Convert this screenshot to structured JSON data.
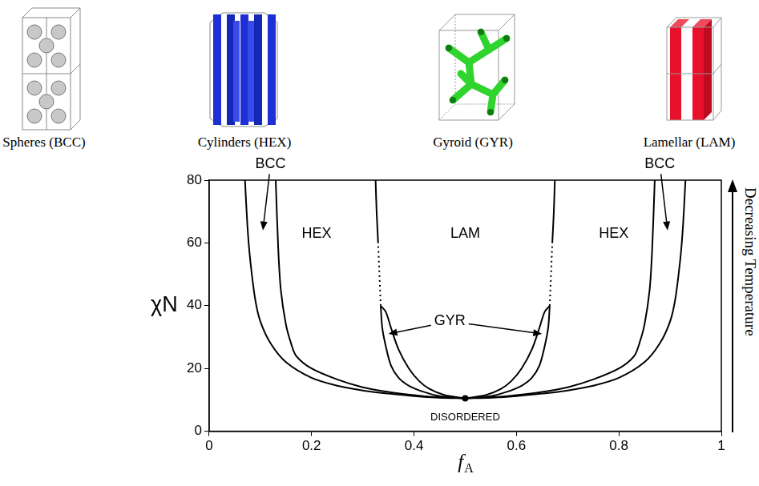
{
  "chart_data": {
    "type": "line",
    "x_label": "fA",
    "y_label": "χN",
    "side_label": "Decreasing Temperature",
    "xlim": [
      0,
      1
    ],
    "xticks": [
      0,
      0.2,
      0.4,
      0.6,
      0.8,
      1
    ],
    "ylim": [
      0,
      80
    ],
    "yticks": [
      0,
      20,
      40,
      60,
      80
    ],
    "grid": false,
    "series": [
      {
        "color": "#000000",
        "line_style": "solid",
        "x": [
          0.5,
          0.45,
          0.4,
          0.35,
          0.3,
          0.25,
          0.2,
          0.15,
          0.12,
          0.1,
          0.09,
          0.08,
          0.075,
          0.07
        ],
        "values": [
          10.5,
          10.7,
          11.2,
          12,
          13,
          14.5,
          17,
          22,
          28,
          35,
          42,
          55,
          65,
          80
        ]
      },
      {
        "color": "#000000",
        "line_style": "solid",
        "x": [
          0.5,
          0.45,
          0.4,
          0.35,
          0.3,
          0.25,
          0.2,
          0.17,
          0.16,
          0.15,
          0.14,
          0.135,
          0.13
        ],
        "values": [
          10.5,
          10.8,
          11.5,
          12.5,
          14,
          16.5,
          20,
          24,
          28,
          34,
          45,
          58,
          80
        ]
      },
      {
        "color": "#000000",
        "line_style": "solid",
        "x": [
          0.5,
          0.45,
          0.42,
          0.39,
          0.37,
          0.355,
          0.345,
          0.338,
          0.335
        ],
        "values": [
          10.5,
          11.2,
          12.5,
          14.5,
          17,
          21,
          27,
          33,
          40
        ]
      },
      {
        "color": "#000000",
        "line_style": "solid",
        "x": [
          0.5,
          0.46,
          0.43,
          0.41,
          0.39,
          0.37,
          0.355,
          0.345,
          0.335
        ],
        "values": [
          10.5,
          11.5,
          13.5,
          16,
          20,
          26,
          33,
          38,
          40
        ]
      },
      {
        "color": "#000000",
        "line_style": "dotted",
        "x": [
          0.335,
          0.33
        ],
        "values": [
          40,
          60
        ]
      },
      {
        "color": "#000000",
        "line_style": "solid",
        "x": [
          0.33,
          0.327,
          0.325
        ],
        "values": [
          60,
          70,
          80
        ]
      },
      {
        "color": "#000000",
        "line_style": "solid",
        "x": [
          0.5,
          0.55,
          0.6,
          0.65,
          0.7,
          0.75,
          0.8,
          0.85,
          0.88,
          0.9,
          0.91,
          0.92,
          0.925,
          0.93
        ],
        "values": [
          10.5,
          10.7,
          11.2,
          12,
          13,
          14.5,
          17,
          22,
          28,
          35,
          42,
          55,
          65,
          80
        ]
      },
      {
        "color": "#000000",
        "line_style": "solid",
        "x": [
          0.5,
          0.55,
          0.6,
          0.65,
          0.7,
          0.75,
          0.8,
          0.83,
          0.84,
          0.85,
          0.86,
          0.865,
          0.87
        ],
        "values": [
          10.5,
          10.8,
          11.5,
          12.5,
          14,
          16.5,
          20,
          24,
          28,
          34,
          45,
          58,
          80
        ]
      },
      {
        "color": "#000000",
        "line_style": "solid",
        "x": [
          0.5,
          0.55,
          0.58,
          0.61,
          0.63,
          0.645,
          0.655,
          0.662,
          0.665
        ],
        "values": [
          10.5,
          11.2,
          12.5,
          14.5,
          17,
          21,
          27,
          33,
          40
        ]
      },
      {
        "color": "#000000",
        "line_style": "solid",
        "x": [
          0.5,
          0.54,
          0.57,
          0.59,
          0.61,
          0.63,
          0.645,
          0.655,
          0.665
        ],
        "values": [
          10.5,
          11.5,
          13.5,
          16,
          20,
          26,
          33,
          38,
          40
        ]
      },
      {
        "color": "#000000",
        "line_style": "dotted",
        "x": [
          0.665,
          0.67
        ],
        "values": [
          40,
          60
        ]
      },
      {
        "color": "#000000",
        "line_style": "solid",
        "x": [
          0.67,
          0.673,
          0.675
        ],
        "values": [
          60,
          70,
          80
        ]
      },
      {
        "color": "#000000",
        "type": "scatter",
        "marker": "circle",
        "x": [
          0.5
        ],
        "values": [
          10.5
        ]
      }
    ],
    "annotations": [
      {
        "text": "BCC",
        "x": 0.12,
        "y": 85,
        "points_to": [
          [
            0.105,
            64
          ]
        ]
      },
      {
        "text": "BCC",
        "x": 0.88,
        "y": 85,
        "points_to": [
          [
            0.895,
            64
          ]
        ]
      },
      {
        "text": "HEX",
        "x": 0.21,
        "y": 63
      },
      {
        "text": "LAM",
        "x": 0.5,
        "y": 63
      },
      {
        "text": "HEX",
        "x": 0.79,
        "y": 63
      },
      {
        "text": "GYR",
        "x": 0.47,
        "y": 35,
        "points_to": [
          [
            0.35,
            31
          ],
          [
            0.65,
            31
          ]
        ]
      },
      {
        "text": "DISORDERED",
        "x": 0.5,
        "y": 4.5
      }
    ]
  },
  "structures": [
    {
      "label": "Spheres (BCC)"
    },
    {
      "label": "Cylinders (HEX)"
    },
    {
      "label": "Gyroid (GYR)"
    },
    {
      "label": "Lamellar (LAM)"
    }
  ]
}
